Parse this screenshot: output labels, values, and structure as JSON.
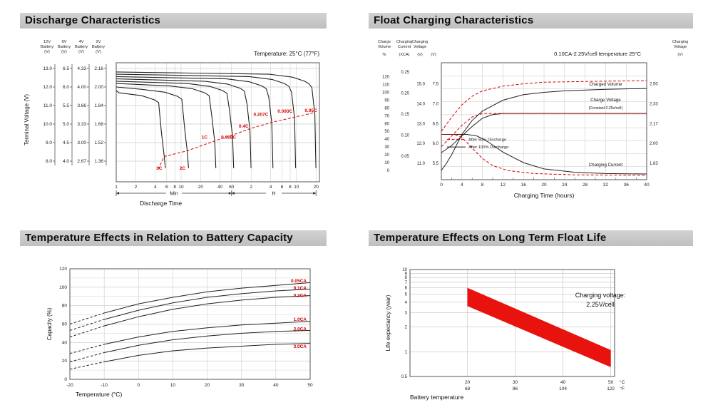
{
  "page": {
    "background": "#ffffff"
  },
  "sections": [
    {
      "title": "Discharge Characteristics"
    },
    {
      "title": "Float Charging Characteristics"
    },
    {
      "title": "Temperature Effects in Relation to Battery Capacity"
    },
    {
      "title": "Temperature Effects on Long Term Float Life"
    }
  ],
  "chart_data": [
    {
      "id": "discharge-characteristics",
      "type": "line",
      "title": "Discharge Characteristics",
      "temperature_note": "Temperature: 25°C (77°F)",
      "ylabel": "Terminal Voltage (V)",
      "xlabel": "Discharge Time",
      "x_ticks_min": [
        1,
        2,
        4,
        6,
        8,
        10,
        20,
        40,
        60
      ],
      "x_ticks_h": [
        2,
        4,
        6,
        8,
        10,
        20
      ],
      "x_segment_labels": [
        "Min",
        "H"
      ],
      "y_axes": [
        {
          "header": [
            "12V",
            "Battery",
            "(V)"
          ],
          "ticks": [
            "13.0",
            "12.0",
            "11.0",
            "10.0",
            "9.0",
            "8.0"
          ]
        },
        {
          "header": [
            "6V",
            "Battery",
            "(V)"
          ],
          "ticks": [
            "6.5",
            "6.0",
            "5.5",
            "5.0",
            "4.5",
            "4.0"
          ]
        },
        {
          "header": [
            "4V",
            "Battery",
            "(V)"
          ],
          "ticks": [
            "4.33",
            "4.00",
            "3.66",
            "3.33",
            "3.00",
            "2.67"
          ]
        },
        {
          "header": [
            "2V",
            "Battery",
            "(V)"
          ],
          "ticks": [
            "2.16",
            "2.00",
            "1.84",
            "1.68",
            "1.52",
            "1.36"
          ]
        }
      ],
      "curves": [
        {
          "label": "3C",
          "v0": 1.97,
          "t": 5.5,
          "vc": 1.4,
          "label_t": 4.6,
          "label_v": 1.285
        },
        {
          "label": "2C",
          "v0": 2.0,
          "t": 12.5,
          "vc": 1.44,
          "label_t": 10.5,
          "label_v": 1.285
        },
        {
          "label": "1C",
          "v0": 2.03,
          "t": 33,
          "vc": 1.53,
          "label_t": 23,
          "label_v": 1.555
        },
        {
          "label": "0.628C",
          "v0": 2.05,
          "t": 62,
          "vc": 1.58,
          "label_t": 54,
          "label_v": 1.555
        },
        {
          "label": "0.4C",
          "v0": 2.07,
          "t": 115,
          "vc": 1.635,
          "label_t": 92,
          "label_v": 1.65
        },
        {
          "label": "0.207C",
          "v0": 2.09,
          "t": 250,
          "vc": 1.69,
          "label_t": 170,
          "label_v": 1.75
        },
        {
          "label": "0.093C",
          "v0": 2.11,
          "t": 560,
          "vc": 1.735,
          "label_t": 400,
          "label_v": 1.78
        },
        {
          "label": "0.05C",
          "v0": 2.13,
          "t": 1150,
          "vc": 1.775,
          "label_t": 1000,
          "label_v": 1.785
        }
      ],
      "cutoff_line": {
        "color": "#d40000",
        "points": [
          [
            4.4,
            1.29
          ],
          [
            5.5,
            1.4
          ],
          [
            12.5,
            1.45
          ],
          [
            33,
            1.535
          ],
          [
            62,
            1.585
          ],
          [
            115,
            1.64
          ],
          [
            250,
            1.695
          ],
          [
            560,
            1.74
          ],
          [
            1150,
            1.78
          ]
        ]
      }
    },
    {
      "id": "float-charging-characteristics",
      "type": "line",
      "title": "Float Charging Characteristics",
      "condition_note": "0.10CA-2.25V/cell  temperature 25°C",
      "xlabel": "Charging Time (hours)",
      "x_max": 40,
      "x_ticks": [
        0,
        4,
        8,
        12,
        16,
        20,
        24,
        28,
        32,
        36,
        40
      ],
      "left_axes": [
        {
          "header": [
            "Charge",
            "Volume"
          ],
          "unit": "%",
          "top": 0.12,
          "bottom": 0.92,
          "ticks": [
            "120",
            "110",
            "100",
            "90",
            "80",
            "70",
            "60",
            "50",
            "40",
            "30",
            "20",
            "10",
            "0"
          ]
        },
        {
          "header": [
            "Charging",
            "Current"
          ],
          "unit": "(XCA)",
          "top": 0.08,
          "bottom": 0.8,
          "ticks": [
            "0.25",
            "0.20",
            "0.15",
            "0.10",
            "0.05"
          ]
        },
        {
          "header": [
            "Charging",
            "Voltage"
          ],
          "unit": "(V)",
          "top": 0.18,
          "bottom": 0.86,
          "ticks": [
            "15.0",
            "14.0",
            "13.0",
            "12.0",
            "11.0"
          ]
        },
        {
          "header": [
            "",
            ""
          ],
          "unit": "(V)",
          "top": 0.18,
          "bottom": 0.86,
          "ticks": [
            "7.5",
            "7.0",
            "6.5",
            "6.0",
            "5.5"
          ]
        }
      ],
      "right_axis": {
        "header": [
          "Charging",
          "Voltage"
        ],
        "unit": "(V)",
        "top": 0.18,
        "bottom": 0.86,
        "ticks": [
          "2.50",
          "2.33",
          "2.17",
          "2.00",
          "1.83"
        ]
      },
      "legend": [
        {
          "label": "After  50% Discharge",
          "style": "dashed",
          "color": "#d40000"
        },
        {
          "label": "After 100% Discharge",
          "style": "solid",
          "color": "#222222"
        }
      ],
      "annotations": [
        {
          "text": "Charged Volume",
          "x": 0.8,
          "y": 0.195
        },
        {
          "text": "Charge Voltage",
          "x": 0.8,
          "y": 0.33
        },
        {
          "text": "(Constant 2.25v/cell)",
          "x": 0.8,
          "y": 0.395,
          "small": true
        },
        {
          "text": "Charging Current",
          "x": 0.8,
          "y": 0.885
        }
      ],
      "series": [
        {
          "name": "charged-volume-100",
          "scale": "volume",
          "style": "solid",
          "points": [
            [
              0,
              0
            ],
            [
              1,
              9
            ],
            [
              2,
              20
            ],
            [
              4,
              46
            ],
            [
              6,
              64
            ],
            [
              8,
              76
            ],
            [
              12,
              90
            ],
            [
              16,
              97
            ],
            [
              20,
              100
            ],
            [
              24,
              102
            ],
            [
              32,
              104
            ],
            [
              40,
              105
            ]
          ]
        },
        {
          "name": "charged-volume-50",
          "scale": "volume",
          "style": "dashed",
          "points": [
            [
              0,
              50
            ],
            [
              2,
              68
            ],
            [
              4,
              84
            ],
            [
              6,
              95
            ],
            [
              8,
              102
            ],
            [
              12,
              108
            ],
            [
              16,
              111
            ],
            [
              20,
              113
            ],
            [
              28,
              114
            ],
            [
              40,
              115
            ]
          ]
        },
        {
          "name": "charge-voltage-100",
          "scale": "cellv",
          "style": "solid",
          "points": [
            [
              0,
              1.92
            ],
            [
              2,
              1.98
            ],
            [
              4,
              2.06
            ],
            [
              6,
              2.14
            ],
            [
              8,
              2.21
            ],
            [
              10,
              2.24
            ],
            [
              12,
              2.25
            ],
            [
              40,
              2.25
            ]
          ]
        },
        {
          "name": "charge-voltage-50",
          "scale": "cellv",
          "style": "dashed",
          "points": [
            [
              0,
              1.97
            ],
            [
              2,
              2.06
            ],
            [
              4,
              2.15
            ],
            [
              6,
              2.22
            ],
            [
              8,
              2.25
            ],
            [
              40,
              2.25
            ]
          ]
        },
        {
          "name": "charging-current-100",
          "scale": "current",
          "style": "solid",
          "points": [
            [
              0,
              0.102
            ],
            [
              5,
              0.102
            ],
            [
              7,
              0.098
            ],
            [
              9,
              0.085
            ],
            [
              12,
              0.06
            ],
            [
              16,
              0.035
            ],
            [
              20,
              0.02
            ],
            [
              26,
              0.012
            ],
            [
              32,
              0.009
            ],
            [
              40,
              0.008
            ]
          ]
        },
        {
          "name": "charging-current-50",
          "scale": "current",
          "style": "dashed",
          "points": [
            [
              0,
              0.102
            ],
            [
              2.5,
              0.102
            ],
            [
              4,
              0.095
            ],
            [
              6,
              0.07
            ],
            [
              8,
              0.045
            ],
            [
              10,
              0.028
            ],
            [
              13,
              0.016
            ],
            [
              18,
              0.009
            ],
            [
              26,
              0.006
            ],
            [
              40,
              0.005
            ]
          ]
        }
      ]
    },
    {
      "id": "temperature-capacity",
      "type": "line",
      "title": "Temperature Effects in Relation to Battery Capacity",
      "xlabel": "Temperature (°C)",
      "ylabel": "Capacity (%)",
      "x_ticks": [
        -20,
        -10,
        0,
        10,
        20,
        30,
        40,
        50
      ],
      "y_ticks": [
        0,
        20,
        40,
        60,
        80,
        100,
        120
      ],
      "x": [
        -20,
        -10,
        0,
        10,
        20,
        30,
        40,
        50
      ],
      "label_color": "#d40000",
      "series": [
        {
          "label": "0.05CA",
          "label_value": 107,
          "values": [
            60,
            72,
            82,
            89,
            95,
            99,
            102,
            105
          ]
        },
        {
          "label": "0.1CA",
          "label_value": 99,
          "values": [
            53,
            65,
            75,
            83,
            89,
            93,
            96,
            98
          ]
        },
        {
          "label": "0.2CA",
          "label_value": 91,
          "values": [
            46,
            58,
            68,
            76,
            82,
            86,
            89,
            91
          ]
        },
        {
          "label": "1.0CA",
          "label_value": 65,
          "values": [
            28,
            38,
            46,
            52,
            56,
            59,
            61,
            63
          ]
        },
        {
          "label": "2.0CA",
          "label_value": 54.5,
          "values": [
            19,
            29,
            37,
            43,
            47,
            50,
            52,
            53
          ]
        },
        {
          "label": "3.0CA",
          "label_value": 35.5,
          "values": [
            11,
            19,
            26,
            31,
            34,
            36,
            38,
            39
          ]
        }
      ]
    },
    {
      "id": "temperature-float-life",
      "type": "band",
      "title": "Temperature Effects on Long Term Float Life",
      "xlabel": "Battery temperature",
      "ylabel": "Life expectancy (year)",
      "y_ticks": [
        10,
        9,
        8,
        7,
        6,
        5,
        4,
        3,
        2,
        1,
        0.5
      ],
      "x_ticks_c": [
        20,
        30,
        40,
        50
      ],
      "x_ticks_f": [
        68,
        86,
        104,
        122
      ],
      "x_unit_c": "°C",
      "x_unit_f": "°F",
      "annotation": [
        "Charging voltage:",
        "2.25V/cell"
      ],
      "band": {
        "color": "#e8120e",
        "x": [
          20,
          50
        ],
        "top": [
          6.0,
          1.05
        ],
        "bottom": [
          3.6,
          0.65
        ]
      }
    }
  ]
}
